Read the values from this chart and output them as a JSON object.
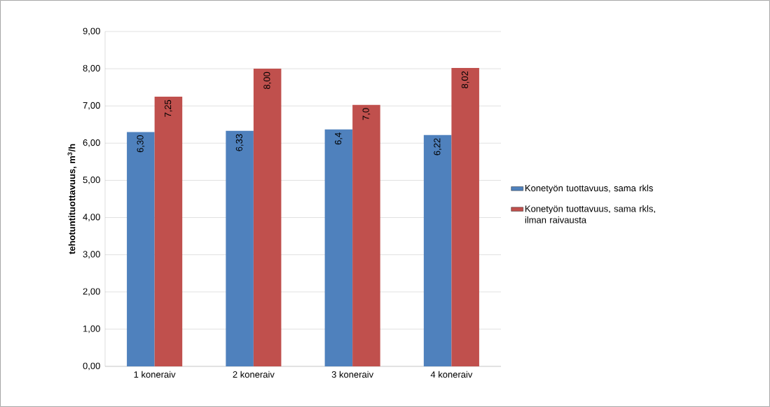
{
  "chart_data": {
    "type": "bar",
    "ylabel": "tehotuntituottavuus, m$^{3}$/h",
    "categories": [
      "1 koneraiv",
      "2 koneraiv",
      "3 koneraiv",
      "4 koneraiv"
    ],
    "series": [
      {
        "name": "Konetyön tuottavuus, sama rkls",
        "color": "#4f81bd",
        "values": [
          6.3,
          6.33,
          6.37,
          6.22
        ],
        "value_labels": [
          "6,30",
          "6,33",
          "6,4",
          "6,22"
        ]
      },
      {
        "name": "Konetyön tuottavuus, sama rkls, ilman raivausta",
        "color": "#c0504d",
        "values": [
          7.25,
          8.0,
          7.03,
          8.02
        ],
        "value_labels": [
          "7,25",
          "8,00",
          "7,0",
          "8,02"
        ]
      }
    ],
    "ylim": [
      0,
      9
    ],
    "yticks": [
      {
        "value": 0,
        "label": "0,00"
      },
      {
        "value": 1,
        "label": "1,00"
      },
      {
        "value": 2,
        "label": "2,00"
      },
      {
        "value": 3,
        "label": "3,00"
      },
      {
        "value": 4,
        "label": "4,00"
      },
      {
        "value": 5,
        "label": "5,00"
      },
      {
        "value": 6,
        "label": "6,00"
      },
      {
        "value": 7,
        "label": "7,00"
      },
      {
        "value": 8,
        "label": "8,00"
      },
      {
        "value": 9,
        "label": "9,00"
      }
    ],
    "grid": "y",
    "legend": "right"
  }
}
